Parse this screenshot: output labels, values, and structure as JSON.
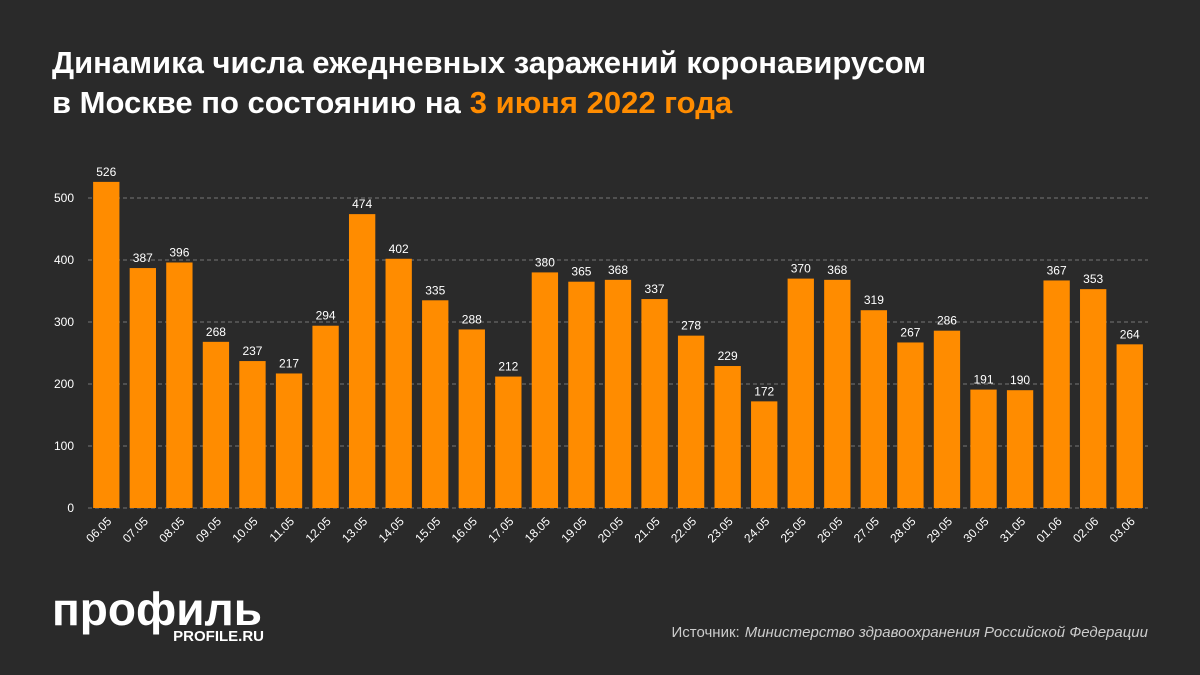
{
  "chart_data": {
    "type": "bar",
    "title": [
      "Динамика числа ежедневных заражений коронавирусом",
      "в Москве по состоянию на"
    ],
    "title_highlight": "3 июня 2022 года",
    "categories": [
      "06.05",
      "07.05",
      "08.05",
      "09.05",
      "10.05",
      "11.05",
      "12.05",
      "13.05",
      "14.05",
      "15.05",
      "16.05",
      "17.05",
      "18.05",
      "19.05",
      "20.05",
      "21.05",
      "22.05",
      "23.05",
      "24.05",
      "25.05",
      "26.05",
      "27.05",
      "28.05",
      "29.05",
      "30.05",
      "31.05",
      "01.06",
      "02.06",
      "03.06"
    ],
    "values": [
      526,
      387,
      396,
      268,
      237,
      217,
      294,
      474,
      402,
      335,
      288,
      212,
      380,
      365,
      368,
      337,
      278,
      229,
      172,
      370,
      368,
      319,
      267,
      286,
      191,
      190,
      367,
      353,
      264
    ],
    "color": "#ff8c00",
    "ylim": [
      0,
      550
    ],
    "yticks": [
      0,
      100,
      200,
      300,
      400,
      500
    ],
    "grid": true,
    "logo": "профиль",
    "logo_site": "PROFILE.RU",
    "source_label": "Источник:",
    "source": "Министерство здравоохранения Российской Федерации"
  }
}
